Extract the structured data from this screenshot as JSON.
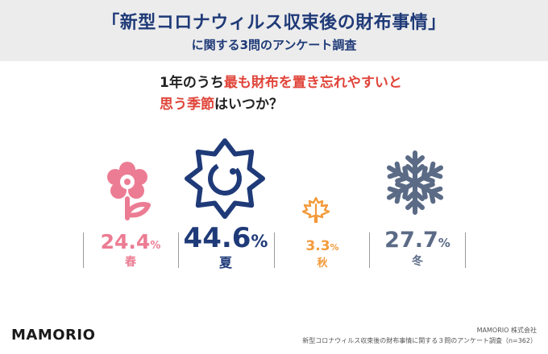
{
  "header": {
    "title": "「新型コロナウィルス収束後の財布事情」",
    "subtitle": "に関する3問のアンケート調査"
  },
  "question": {
    "line1_prefix": "1年のうち",
    "line1_highlight": "最も財布を置き忘れやすいと",
    "line2_highlight": "思う季節",
    "line2_suffix": "はいつか？"
  },
  "chart_data": {
    "type": "bar",
    "categories": [
      "春",
      "夏",
      "秋",
      "冬"
    ],
    "values": [
      24.4,
      44.6,
      3.3,
      27.7
    ],
    "unit": "%",
    "icons": [
      "flower-icon",
      "sun-icon",
      "maple-leaf-icon",
      "snowflake-icon"
    ],
    "colors": [
      "#ec7c93",
      "#1f3a78",
      "#f39a3a",
      "#5b6b86"
    ]
  },
  "stats": [
    {
      "value": "24.4",
      "unit": "%",
      "season": "春"
    },
    {
      "value": "44.6",
      "unit": "%",
      "season": "夏"
    },
    {
      "value": "3.3",
      "unit": "%",
      "season": "秋"
    },
    {
      "value": "27.7",
      "unit": "%",
      "season": "冬"
    }
  ],
  "footer": {
    "logo": "MAMORIO",
    "company": "MAMORIO 株式会社",
    "source": "新型コロナウィルス収束後の財布事情に関する３問のアンケート調査（n=362）"
  }
}
